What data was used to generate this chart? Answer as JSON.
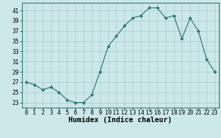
{
  "x": [
    0,
    1,
    2,
    3,
    4,
    5,
    6,
    7,
    8,
    9,
    10,
    11,
    12,
    13,
    14,
    15,
    16,
    17,
    18,
    19,
    20,
    21,
    22,
    23
  ],
  "y": [
    27,
    26.5,
    25.5,
    26,
    25,
    23.5,
    23,
    23,
    24.5,
    29,
    34,
    36,
    38,
    39.5,
    40,
    41.5,
    41.5,
    39.5,
    40,
    35.5,
    39.5,
    37,
    31.5,
    29
  ],
  "line_color": "#2a7a6f",
  "marker": "D",
  "marker_size": 2.2,
  "bg_color": "#cce8e8",
  "grid_color": "#b0d0d0",
  "xlabel": "Humidex (Indice chaleur)",
  "xlim": [
    -0.5,
    23.5
  ],
  "ylim": [
    22,
    42.5
  ],
  "yticks": [
    23,
    25,
    27,
    29,
    31,
    33,
    35,
    37,
    39,
    41
  ],
  "xticks": [
    0,
    1,
    2,
    3,
    4,
    5,
    6,
    7,
    8,
    9,
    10,
    11,
    12,
    13,
    14,
    15,
    16,
    17,
    18,
    19,
    20,
    21,
    22,
    23
  ],
  "xlabel_fontsize": 7.5,
  "tick_fontsize": 6.0
}
